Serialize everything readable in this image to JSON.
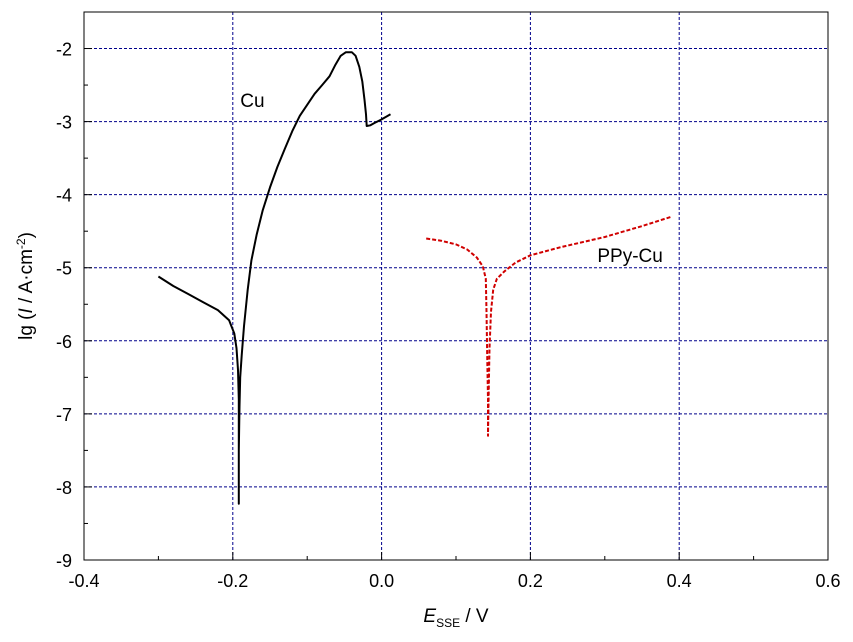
{
  "chart_data": {
    "type": "line",
    "xlabel": {
      "main": "E",
      "sub": "SSE",
      "unit": " / V"
    },
    "ylabel": {
      "pre": "lg (",
      "var": "I",
      "mid": " / A·cm",
      "sup": "-2",
      "post": ")"
    },
    "xlim": [
      -0.4,
      0.6
    ],
    "ylim": [
      -9,
      -1.5
    ],
    "xticks": [
      -0.4,
      -0.2,
      0.0,
      0.2,
      0.4,
      0.6
    ],
    "xtick_labels": [
      "-0.4",
      "-0.2",
      "0.0",
      "0.2",
      "0.4",
      "0.6"
    ],
    "yticks": [
      -9,
      -8,
      -7,
      -6,
      -5,
      -4,
      -3,
      -2
    ],
    "ytick_labels": [
      "-9",
      "-8",
      "-7",
      "-6",
      "-5",
      "-4",
      "-3",
      "-2"
    ],
    "grid": true,
    "grid_color": "#00008b",
    "series": [
      {
        "name": "Cu",
        "color": "#000000",
        "dash": "solid",
        "points": [
          [
            -0.3,
            -5.12
          ],
          [
            -0.28,
            -5.25
          ],
          [
            -0.26,
            -5.36
          ],
          [
            -0.24,
            -5.47
          ],
          [
            -0.22,
            -5.58
          ],
          [
            -0.205,
            -5.72
          ],
          [
            -0.198,
            -5.9
          ],
          [
            -0.195,
            -6.1
          ],
          [
            -0.193,
            -6.4
          ],
          [
            -0.192,
            -6.8
          ],
          [
            -0.192,
            -7.2
          ],
          [
            -0.192,
            -7.8
          ],
          [
            -0.192,
            -8.23
          ],
          [
            -0.192,
            -7.5
          ],
          [
            -0.191,
            -6.9
          ],
          [
            -0.19,
            -6.5
          ],
          [
            -0.188,
            -6.2
          ],
          [
            -0.185,
            -5.8
          ],
          [
            -0.18,
            -5.3
          ],
          [
            -0.175,
            -4.9
          ],
          [
            -0.168,
            -4.55
          ],
          [
            -0.16,
            -4.22
          ],
          [
            -0.15,
            -3.9
          ],
          [
            -0.14,
            -3.62
          ],
          [
            -0.13,
            -3.37
          ],
          [
            -0.12,
            -3.13
          ],
          [
            -0.11,
            -2.92
          ],
          [
            -0.1,
            -2.77
          ],
          [
            -0.09,
            -2.62
          ],
          [
            -0.08,
            -2.5
          ],
          [
            -0.07,
            -2.38
          ],
          [
            -0.062,
            -2.22
          ],
          [
            -0.055,
            -2.1
          ],
          [
            -0.048,
            -2.05
          ],
          [
            -0.04,
            -2.05
          ],
          [
            -0.035,
            -2.1
          ],
          [
            -0.03,
            -2.25
          ],
          [
            -0.026,
            -2.45
          ],
          [
            -0.023,
            -2.7
          ],
          [
            -0.021,
            -2.9
          ],
          [
            -0.02,
            -3.06
          ],
          [
            -0.015,
            -3.05
          ],
          [
            -0.01,
            -3.02
          ],
          [
            0.0,
            -2.97
          ],
          [
            0.012,
            -2.9
          ]
        ]
      },
      {
        "name": "PPy-Cu",
        "color": "#d00000",
        "dash": "dashed",
        "points": [
          [
            0.06,
            -4.6
          ],
          [
            0.08,
            -4.63
          ],
          [
            0.1,
            -4.68
          ],
          [
            0.115,
            -4.75
          ],
          [
            0.128,
            -4.86
          ],
          [
            0.136,
            -4.98
          ],
          [
            0.14,
            -5.15
          ],
          [
            0.141,
            -5.6
          ],
          [
            0.142,
            -6.2
          ],
          [
            0.143,
            -6.8
          ],
          [
            0.143,
            -7.3
          ],
          [
            0.144,
            -6.7
          ],
          [
            0.145,
            -6.1
          ],
          [
            0.147,
            -5.6
          ],
          [
            0.15,
            -5.3
          ],
          [
            0.155,
            -5.15
          ],
          [
            0.165,
            -5.05
          ],
          [
            0.18,
            -4.93
          ],
          [
            0.2,
            -4.83
          ],
          [
            0.24,
            -4.72
          ],
          [
            0.3,
            -4.58
          ],
          [
            0.35,
            -4.43
          ],
          [
            0.39,
            -4.3
          ]
        ]
      }
    ],
    "annotations": [
      {
        "text": "Cu",
        "x": -0.19,
        "y": -2.8
      },
      {
        "text": "PPy-Cu",
        "x": 0.29,
        "y": -4.92
      }
    ]
  }
}
